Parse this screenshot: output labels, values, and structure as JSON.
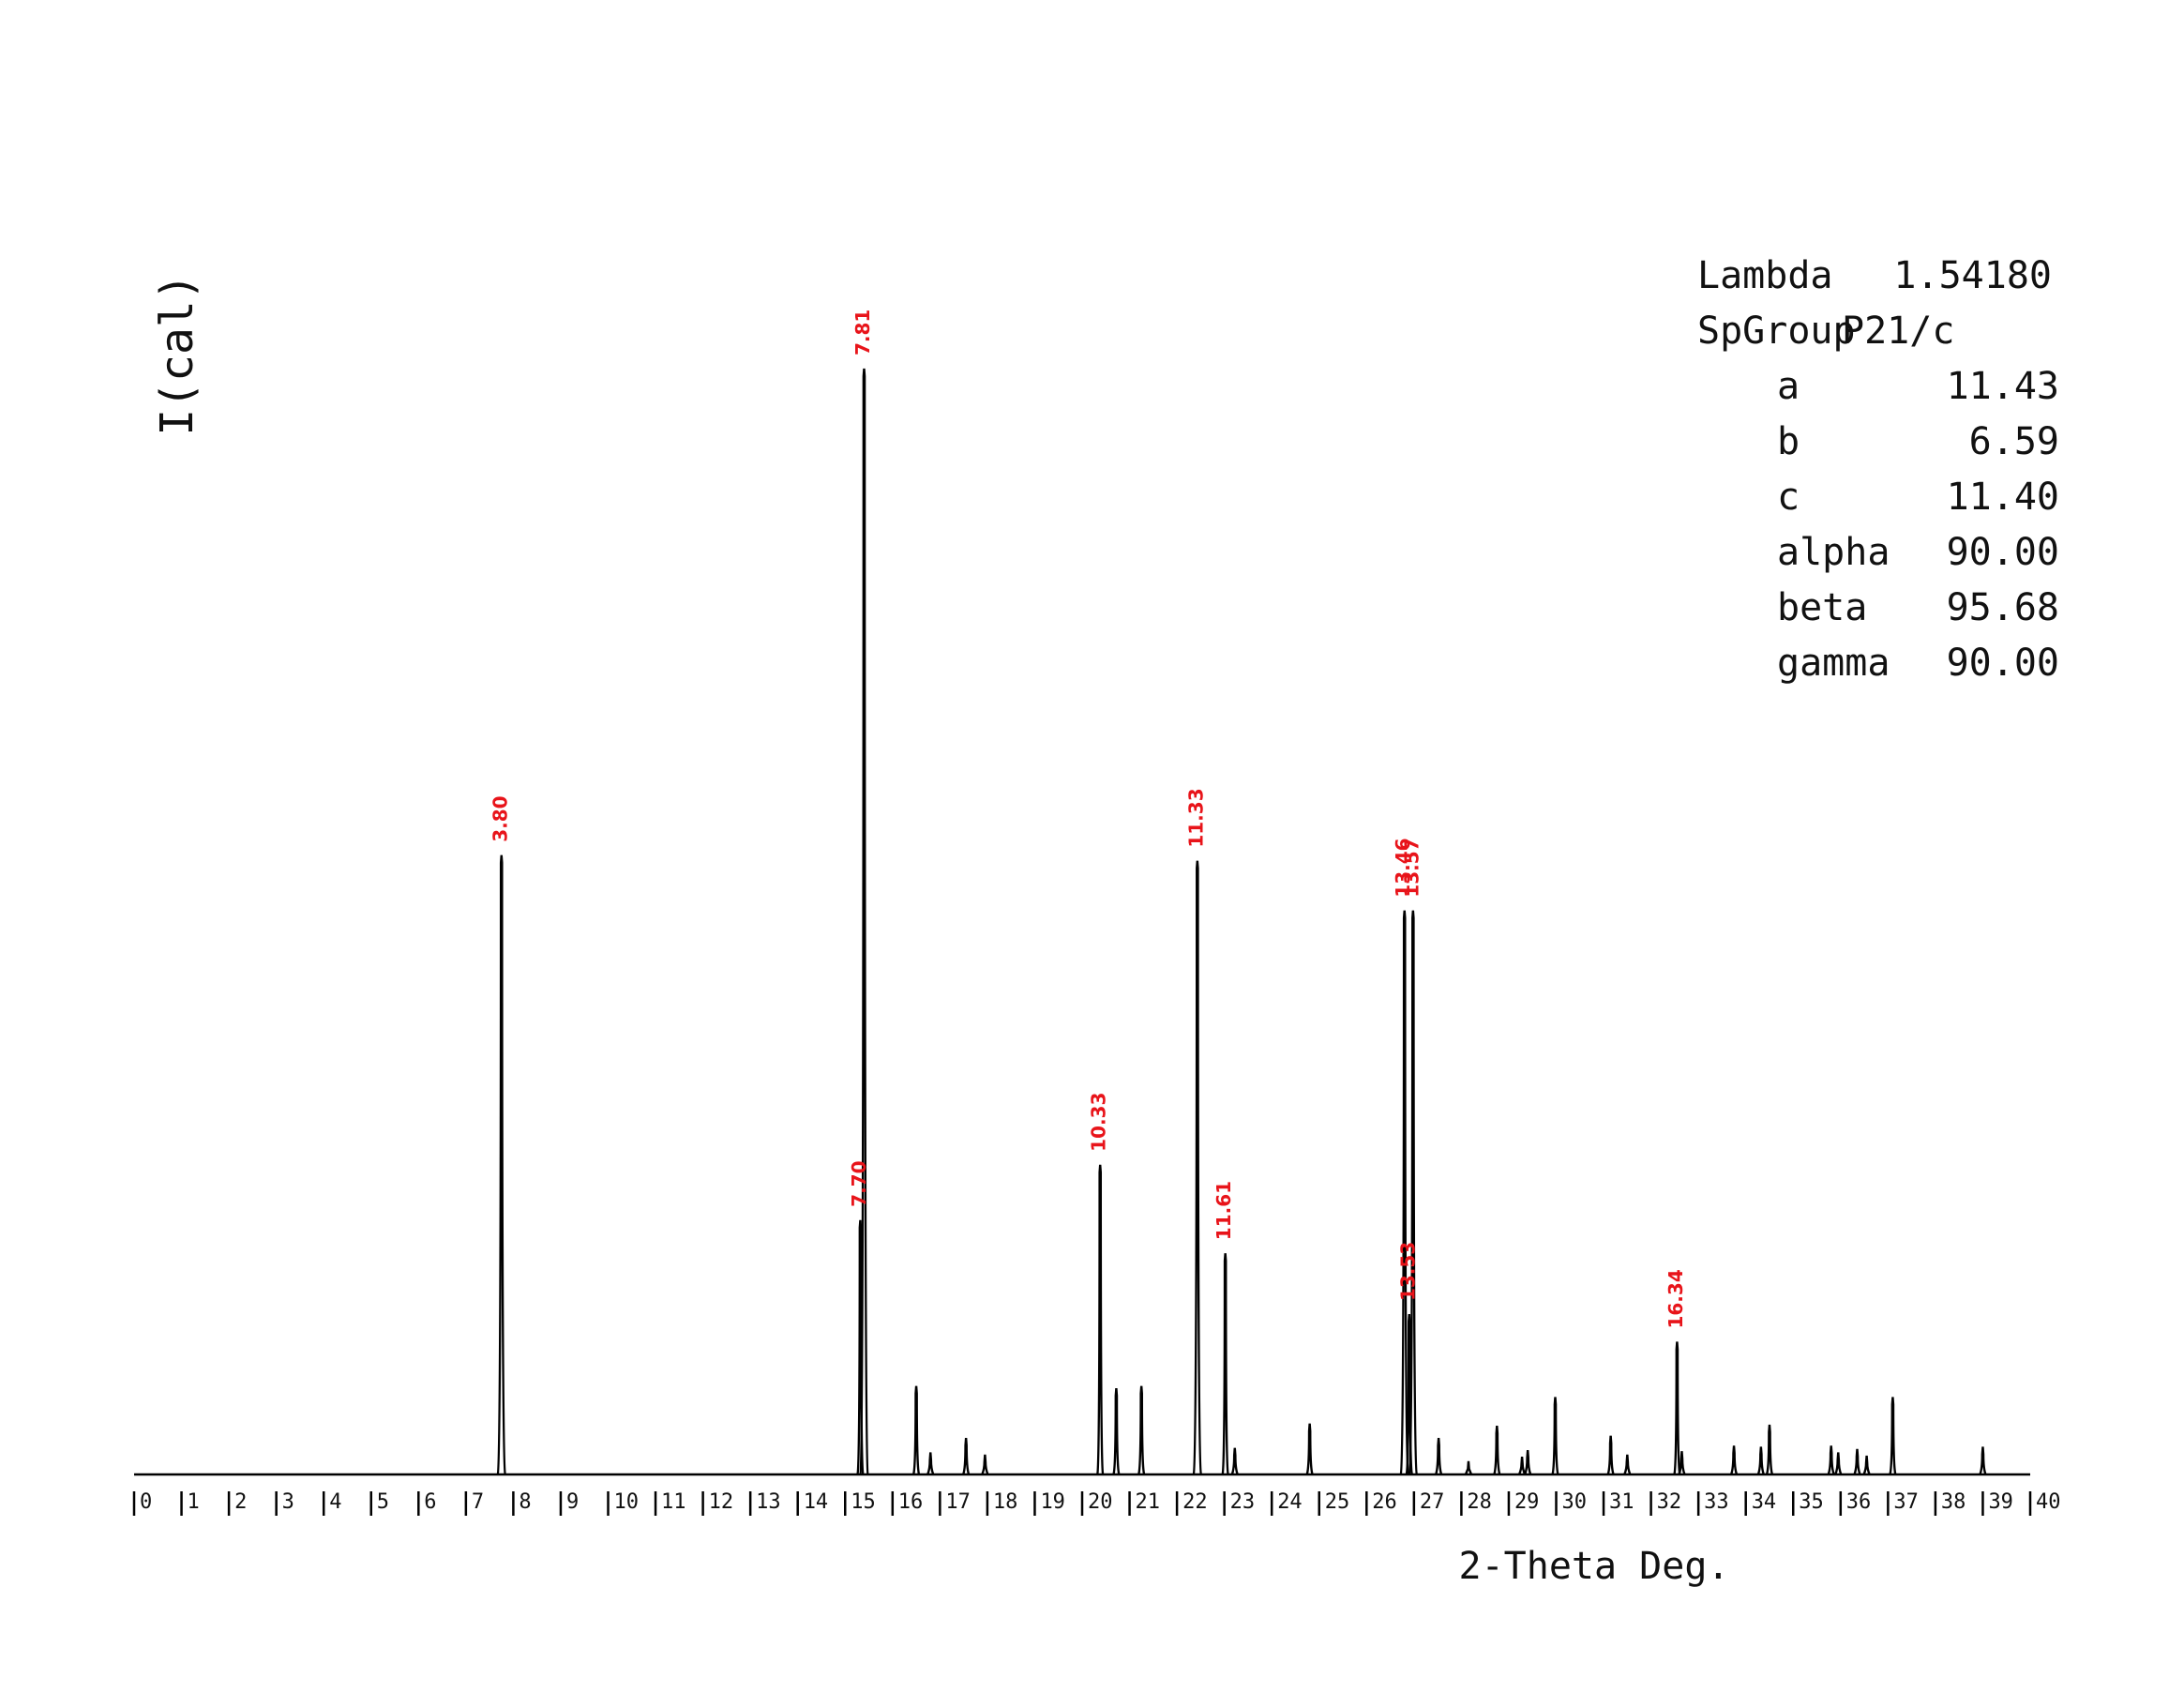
{
  "chart_data": {
    "type": "line",
    "title": "",
    "xlabel": "2-Theta Deg.",
    "ylabel": "I(cal)",
    "xlim": [
      0,
      40
    ],
    "ylim": [
      0,
      100
    ],
    "grid": false,
    "x_ticks": [
      "0",
      "1",
      "2",
      "3",
      "4",
      "5",
      "6",
      "7",
      "8",
      "9",
      "10",
      "11",
      "12",
      "13",
      "14",
      "15",
      "16",
      "17",
      "18",
      "19",
      "20",
      "21",
      "22",
      "23",
      "24",
      "25",
      "26",
      "27",
      "28",
      "29",
      "30",
      "31",
      "32",
      "33",
      "34",
      "35",
      "36",
      "37",
      "38",
      "39",
      "40"
    ],
    "labeled_peaks": [
      {
        "label": "3.80",
        "two_theta": 7.75,
        "intensity": 56
      },
      {
        "label": "7.70",
        "two_theta": 15.32,
        "intensity": 23
      },
      {
        "label": "7.81",
        "two_theta": 15.4,
        "intensity": 100
      },
      {
        "label": "10.33",
        "two_theta": 20.38,
        "intensity": 28
      },
      {
        "label": "11.33",
        "two_theta": 22.43,
        "intensity": 55.5
      },
      {
        "label": "11.61",
        "two_theta": 23.02,
        "intensity": 20
      },
      {
        "label": "13.46",
        "two_theta": 26.8,
        "intensity": 51
      },
      {
        "label": "13.57",
        "two_theta": 26.98,
        "intensity": 51
      },
      {
        "label": "13.53",
        "two_theta": 26.9,
        "intensity": 14.5
      },
      {
        "label": "16.34",
        "two_theta": 32.55,
        "intensity": 12
      }
    ],
    "minor_peaks": [
      {
        "two_theta": 16.5,
        "intensity": 8
      },
      {
        "two_theta": 16.8,
        "intensity": 2
      },
      {
        "two_theta": 17.55,
        "intensity": 3.3
      },
      {
        "two_theta": 17.95,
        "intensity": 1.8
      },
      {
        "two_theta": 20.72,
        "intensity": 7.8
      },
      {
        "two_theta": 21.25,
        "intensity": 8
      },
      {
        "two_theta": 23.22,
        "intensity": 2.4
      },
      {
        "two_theta": 24.8,
        "intensity": 4.6
      },
      {
        "two_theta": 27.52,
        "intensity": 3.3
      },
      {
        "two_theta": 28.15,
        "intensity": 1.2
      },
      {
        "two_theta": 28.75,
        "intensity": 4.4
      },
      {
        "two_theta": 29.28,
        "intensity": 1.6
      },
      {
        "two_theta": 29.4,
        "intensity": 2.2
      },
      {
        "two_theta": 29.98,
        "intensity": 7
      },
      {
        "two_theta": 31.15,
        "intensity": 3.5
      },
      {
        "two_theta": 31.5,
        "intensity": 1.8
      },
      {
        "two_theta": 32.65,
        "intensity": 2.1
      },
      {
        "two_theta": 33.75,
        "intensity": 2.6
      },
      {
        "two_theta": 34.32,
        "intensity": 2.5
      },
      {
        "two_theta": 34.5,
        "intensity": 4.5
      },
      {
        "two_theta": 35.8,
        "intensity": 2.6
      },
      {
        "two_theta": 35.95,
        "intensity": 2
      },
      {
        "two_theta": 36.35,
        "intensity": 2.3
      },
      {
        "two_theta": 36.55,
        "intensity": 1.7
      },
      {
        "two_theta": 37.1,
        "intensity": 7
      },
      {
        "two_theta": 39.0,
        "intensity": 2.5
      }
    ],
    "cell_info": [
      {
        "label": "Lambda",
        "value": "1.54180"
      },
      {
        "label": "SpGroup",
        "value": "P21/c"
      },
      {
        "label": "a",
        "value": "11.43"
      },
      {
        "label": "b",
        "value": "6.59"
      },
      {
        "label": "c",
        "value": "11.40"
      },
      {
        "label": "alpha",
        "value": "90.00"
      },
      {
        "label": "beta",
        "value": "95.68"
      },
      {
        "label": "gamma",
        "value": "90.00"
      }
    ],
    "colors": {
      "trace": "#000000",
      "peak_labels": "#e8141a",
      "text": "#111111"
    }
  }
}
